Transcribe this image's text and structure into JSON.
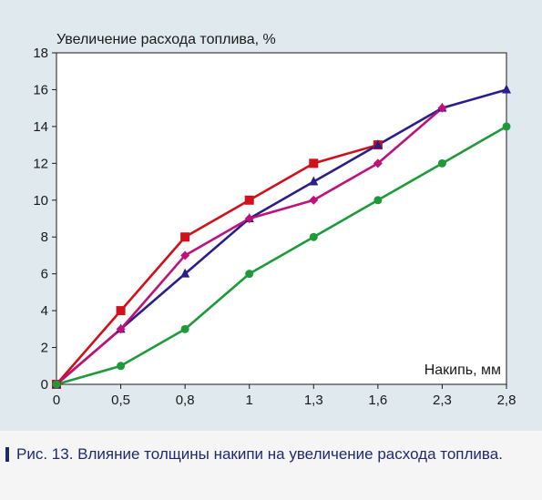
{
  "chart_data": {
    "type": "line",
    "ylabel": "Увеличение расхода топлива, %",
    "xlabel": "Накипь, мм",
    "x_ticks": [
      "0",
      "0,5",
      "0,8",
      "1",
      "1,3",
      "1,6",
      "2,3",
      "2,8"
    ],
    "y_ticks": [
      "0",
      "2",
      "4",
      "6",
      "8",
      "10",
      "12",
      "14",
      "16",
      "18"
    ],
    "ylim": [
      0,
      18
    ],
    "grid": false,
    "series": [
      {
        "color": "#d0101a",
        "marker": "square",
        "values": [
          0,
          4,
          8,
          10,
          12,
          13,
          null,
          null
        ]
      },
      {
        "color": "#2a1f8a",
        "marker": "triangle",
        "values": [
          0,
          3,
          6,
          9,
          11,
          13,
          15,
          16
        ]
      },
      {
        "color": "#c0107a",
        "marker": "diamond",
        "values": [
          0,
          3,
          7,
          9,
          10,
          12,
          15,
          null
        ]
      },
      {
        "color": "#1f9a3a",
        "marker": "circle",
        "values": [
          0,
          1,
          3,
          6,
          8,
          10,
          12,
          14
        ]
      }
    ]
  },
  "caption": "Рис. 13. Влияние толщины накипи на увеличение расхода топлива."
}
